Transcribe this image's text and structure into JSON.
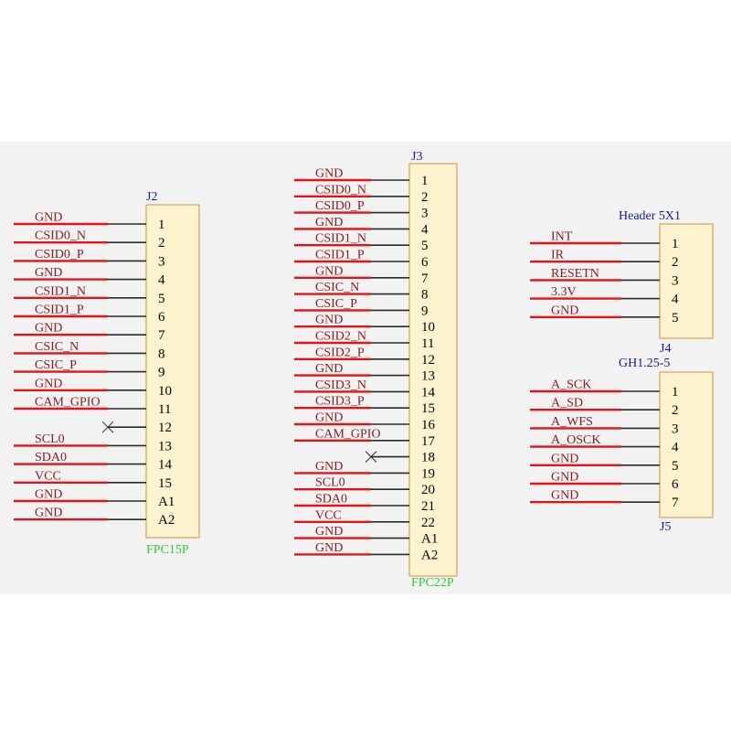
{
  "colors": {
    "band_background": "#f2f2f2",
    "body_fill": "#fdf3cf",
    "body_stroke": "#d6a25a",
    "wire": "#e0141a",
    "pin_stub": "#2a2a2a",
    "net_label": "#8a1a1a",
    "designator": "#1a1a9c",
    "value": "#33cc33",
    "pin_number": "#000000"
  },
  "connectors": [
    {
      "id": "J2",
      "designator": "J2",
      "value": "FPC15P",
      "pins": [
        {
          "number": "1",
          "net": "GND"
        },
        {
          "number": "2",
          "net": "CSID0_N"
        },
        {
          "number": "3",
          "net": "CSID0_P"
        },
        {
          "number": "4",
          "net": "GND"
        },
        {
          "number": "5",
          "net": "CSID1_N"
        },
        {
          "number": "6",
          "net": "CSID1_P"
        },
        {
          "number": "7",
          "net": "GND"
        },
        {
          "number": "8",
          "net": "CSIC_N"
        },
        {
          "number": "9",
          "net": "CSIC_P"
        },
        {
          "number": "10",
          "net": "GND"
        },
        {
          "number": "11",
          "net": "CAM_GPIO"
        },
        {
          "number": "12",
          "net": "",
          "no_connect": true
        },
        {
          "number": "13",
          "net": "SCL0"
        },
        {
          "number": "14",
          "net": "SDA0"
        },
        {
          "number": "15",
          "net": "VCC"
        },
        {
          "number": "A1",
          "net": "GND"
        },
        {
          "number": "A2",
          "net": "GND"
        }
      ]
    },
    {
      "id": "J3",
      "designator": "J3",
      "value": "FPC22P",
      "pins": [
        {
          "number": "1",
          "net": "GND"
        },
        {
          "number": "2",
          "net": "CSID0_N"
        },
        {
          "number": "3",
          "net": "CSID0_P"
        },
        {
          "number": "4",
          "net": "GND"
        },
        {
          "number": "5",
          "net": "CSID1_N"
        },
        {
          "number": "6",
          "net": "CSID1_P"
        },
        {
          "number": "7",
          "net": "GND"
        },
        {
          "number": "8",
          "net": "CSIC_N"
        },
        {
          "number": "9",
          "net": "CSIC_P"
        },
        {
          "number": "10",
          "net": "GND"
        },
        {
          "number": "11",
          "net": "CSID2_N"
        },
        {
          "number": "12",
          "net": "CSID2_P"
        },
        {
          "number": "13",
          "net": "GND"
        },
        {
          "number": "14",
          "net": "CSID3_N"
        },
        {
          "number": "15",
          "net": "CSID3_P"
        },
        {
          "number": "16",
          "net": "GND"
        },
        {
          "number": "17",
          "net": "CAM_GPIO"
        },
        {
          "number": "18",
          "net": "",
          "no_connect": true
        },
        {
          "number": "19",
          "net": "GND"
        },
        {
          "number": "20",
          "net": "SCL0"
        },
        {
          "number": "21",
          "net": "SDA0"
        },
        {
          "number": "22",
          "net": "VCC"
        },
        {
          "number": "A1",
          "net": "GND"
        },
        {
          "number": "A2",
          "net": "GND"
        }
      ]
    },
    {
      "id": "J4",
      "designator": "J4",
      "value": "Header 5X1",
      "pins": [
        {
          "number": "1",
          "net": "INT"
        },
        {
          "number": "2",
          "net": "IR"
        },
        {
          "number": "3",
          "net": "RESETN"
        },
        {
          "number": "4",
          "net": "3.3V"
        },
        {
          "number": "5",
          "net": "GND"
        }
      ]
    },
    {
      "id": "J5",
      "designator": "J5",
      "value": "GH1.25-5",
      "pins": [
        {
          "number": "1",
          "net": "A_SCK"
        },
        {
          "number": "2",
          "net": "A_SD"
        },
        {
          "number": "3",
          "net": "A_WFS"
        },
        {
          "number": "4",
          "net": "A_OSCK"
        },
        {
          "number": "5",
          "net": "GND"
        },
        {
          "number": "6",
          "net": "GND"
        },
        {
          "number": "7",
          "net": "GND"
        }
      ]
    }
  ]
}
